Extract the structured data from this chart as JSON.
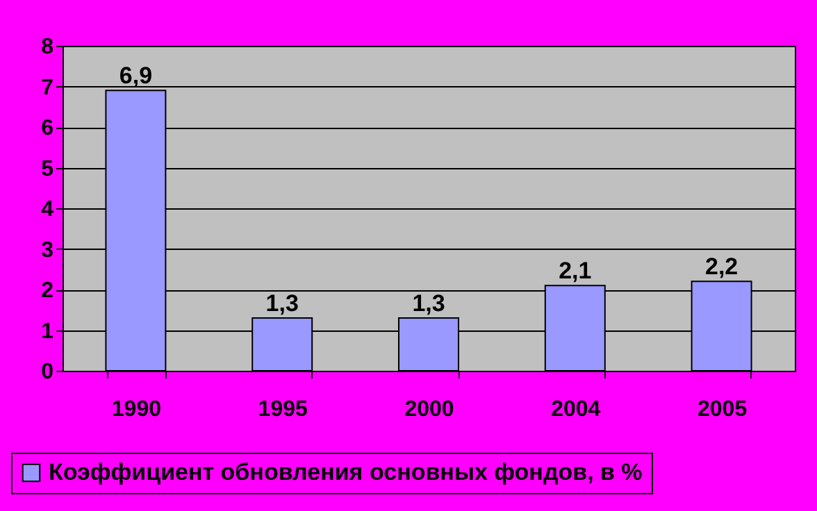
{
  "chart_data": {
    "type": "bar",
    "categories": [
      "1990",
      "1995",
      "2000",
      "2004",
      "2005"
    ],
    "series": [
      {
        "name": "Коэффициент обновления основных фондов, в %",
        "color": "#9999ff",
        "values": [
          6.9,
          1.3,
          1.3,
          2.1,
          2.2
        ],
        "value_labels": [
          "6,9",
          "1,3",
          "1,3",
          "2,1",
          "2,2"
        ]
      }
    ],
    "ylim": [
      0,
      8
    ],
    "yticks": [
      0,
      1,
      2,
      3,
      4,
      5,
      6,
      7,
      8
    ],
    "grid": "y",
    "legend": "bottom"
  }
}
